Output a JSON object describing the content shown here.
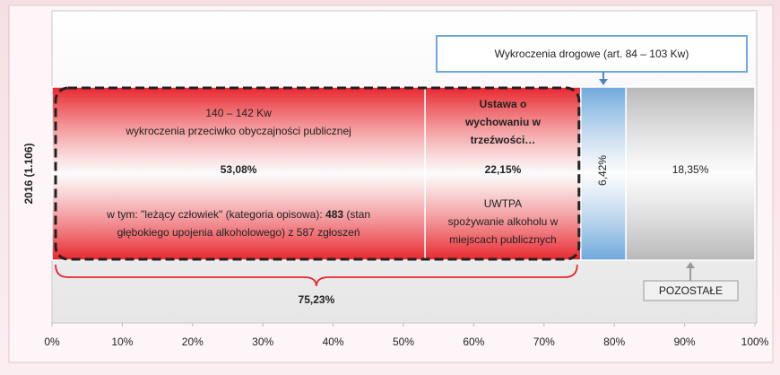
{
  "chart_data": {
    "type": "bar",
    "orientation": "horizontal",
    "stacked": true,
    "categories": [
      "2016 (1.106)"
    ],
    "xlim": [
      0,
      100
    ],
    "xticks": [
      {
        "value": 0,
        "label": "0%"
      },
      {
        "value": 10,
        "label": "10%"
      },
      {
        "value": 20,
        "label": "20%"
      },
      {
        "value": 30,
        "label": "30%"
      },
      {
        "value": 40,
        "label": "40%"
      },
      {
        "value": 50,
        "label": "50%"
      },
      {
        "value": 60,
        "label": "60%"
      },
      {
        "value": 70,
        "label": "70%"
      },
      {
        "value": 80,
        "label": "80%"
      },
      {
        "value": 90,
        "label": "90%"
      },
      {
        "value": 100,
        "label": "100%"
      }
    ],
    "series": [
      {
        "color": "#e8262d",
        "values": [
          53.08
        ],
        "value_labels": [
          "53,08%"
        ],
        "heading": [
          "140 – 142 Kw",
          "wykroczenia przeciwko obyczajności publicznej"
        ],
        "note": [
          [
            {
              "text": "w tym: \"leżący człowiek\" (kategoria opisowa): "
            },
            {
              "text": "483",
              "bold": true
            },
            {
              "text": " (stan"
            }
          ],
          [
            {
              "text": "głębokiego upojenia alkoholowego) z 587 zgłoszeń"
            }
          ]
        ]
      },
      {
        "color": "#e8262d",
        "values": [
          22.15
        ],
        "value_labels": [
          "22,15%"
        ],
        "heading": [
          "Ustawa o",
          "wychowaniu w",
          "trzeźwości…"
        ],
        "note": [
          [
            {
              "text": "UWTPA"
            }
          ],
          [
            {
              "text": "spożywanie alkoholu w"
            }
          ],
          [
            {
              "text": "miejscach publicznych"
            }
          ]
        ]
      },
      {
        "color": "#6fa8dc",
        "values": [
          6.42
        ],
        "value_labels": [
          "6,42%"
        ],
        "callout": "Wykroczenia drogowe (art. 84 – 103 Kw)"
      },
      {
        "color": "#b8b8b8",
        "values": [
          18.35
        ],
        "value_labels": [
          "18,35%"
        ],
        "callout": "POZOSTAŁE"
      }
    ],
    "annotations": [
      {
        "value": 75.23,
        "label": "75,23%",
        "color": "#e8262d"
      }
    ]
  }
}
